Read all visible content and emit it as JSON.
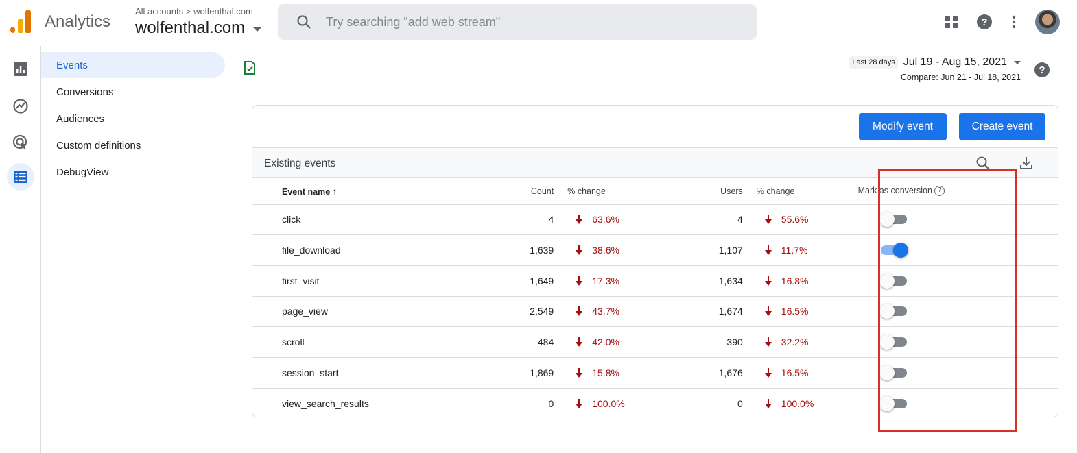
{
  "header": {
    "app_name": "Analytics",
    "breadcrumb": {
      "root": "All accounts",
      "separator": ">",
      "account": "wolfenthal.com"
    },
    "property": "wolfenthal.com",
    "search_placeholder": "Try searching \"add web stream\""
  },
  "subnav": {
    "items": [
      {
        "label": "Events",
        "active": true
      },
      {
        "label": "Conversions"
      },
      {
        "label": "Audiences"
      },
      {
        "label": "Custom definitions"
      },
      {
        "label": "DebugView"
      }
    ]
  },
  "date_range": {
    "chip": "Last 28 days",
    "range": "Jul 19 - Aug 15, 2021",
    "compare": "Compare: Jun 21 - Jul 18, 2021"
  },
  "card": {
    "modify_label": "Modify event",
    "create_label": "Create event",
    "title": "Existing events",
    "columns": {
      "event_name": "Event name",
      "count": "Count",
      "count_change": "% change",
      "users": "Users",
      "users_change": "% change",
      "mark_conversion": "Mark as conversion"
    },
    "rows": [
      {
        "name": "click",
        "count": "4",
        "count_change": "63.6%",
        "users": "4",
        "users_change": "55.6%",
        "conversion": false
      },
      {
        "name": "file_download",
        "count": "1,639",
        "count_change": "38.6%",
        "users": "1,107",
        "users_change": "11.7%",
        "conversion": true
      },
      {
        "name": "first_visit",
        "count": "1,649",
        "count_change": "17.3%",
        "users": "1,634",
        "users_change": "16.8%",
        "conversion": false
      },
      {
        "name": "page_view",
        "count": "2,549",
        "count_change": "43.7%",
        "users": "1,674",
        "users_change": "16.5%",
        "conversion": false
      },
      {
        "name": "scroll",
        "count": "484",
        "count_change": "42.0%",
        "users": "390",
        "users_change": "32.2%",
        "conversion": false
      },
      {
        "name": "session_start",
        "count": "1,869",
        "count_change": "15.8%",
        "users": "1,676",
        "users_change": "16.5%",
        "conversion": false
      },
      {
        "name": "view_search_results",
        "count": "0",
        "count_change": "100.0%",
        "users": "0",
        "users_change": "100.0%",
        "conversion": false
      }
    ]
  },
  "colors": {
    "accent": "#1a73e8",
    "negative": "#a50e0e",
    "highlight": "#d93025"
  }
}
